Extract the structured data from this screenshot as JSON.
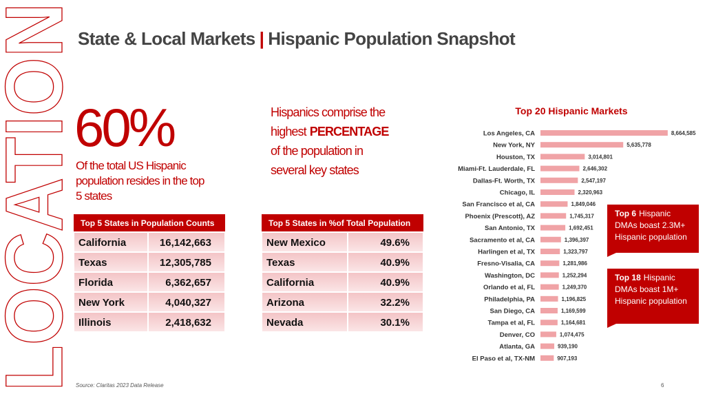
{
  "header": {
    "title_left": "State & Local Markets",
    "separator": "|",
    "title_right": "Hispanic Population Snapshot"
  },
  "side_label": "LOCATION",
  "headline": {
    "figure": "60%",
    "lines": [
      "Of the total US Hispanic",
      "population resides in the top",
      "5 states"
    ]
  },
  "statement": {
    "line1": "Hispanics comprise the",
    "line2_a": "highest",
    "line2_b": "PERCENTAGE",
    "line3": "of the population in",
    "line4": "several key states"
  },
  "tables": [
    {
      "title": "Top 5 States in Population Counts",
      "rows": [
        [
          "California",
          "16,142,663"
        ],
        [
          "Texas",
          "12,305,785"
        ],
        [
          "Florida",
          "6,362,657"
        ],
        [
          "New York",
          "4,040,327"
        ],
        [
          "Illinois",
          "2,418,632"
        ]
      ]
    },
    {
      "title": "Top 5 States in %of Total Population",
      "rows": [
        [
          "New Mexico",
          "49.6%"
        ],
        [
          "Texas",
          "40.9%"
        ],
        [
          "California",
          "40.9%"
        ],
        [
          "Arizona",
          "32.2%"
        ],
        [
          "Nevada",
          "30.1%"
        ]
      ]
    }
  ],
  "chart_data": {
    "type": "bar",
    "orientation": "horizontal",
    "title": "Top 20 Hispanic Markets",
    "color": "#f0a3a6",
    "xlim": [
      0,
      9000000
    ],
    "categories": [
      "Los Angeles, CA",
      "New York, NY",
      "Houston, TX",
      "Miami-Ft. Lauderdale, FL",
      "Dallas-Ft. Worth, TX",
      "Chicago, IL",
      "San Francisco et al, CA",
      "Phoenix (Prescott), AZ",
      "San Antonio, TX",
      "Sacramento et al, CA",
      "Harlingen et al, TX",
      "Fresno-Visalia, CA",
      "Washington, DC",
      "Orlando et al, FL",
      "Philadelphia, PA",
      "San Diego, CA",
      "Tampa et al, FL",
      "Denver, CO",
      "Atlanta, GA",
      "El Paso et al, TX-NM"
    ],
    "values": [
      8664585,
      5635778,
      3014801,
      2646302,
      2547197,
      2320963,
      1849046,
      1745317,
      1692451,
      1396397,
      1323797,
      1281986,
      1252294,
      1249370,
      1196825,
      1169599,
      1164681,
      1074475,
      939190,
      907193
    ],
    "value_labels": [
      "8,664,585",
      "5,635,778",
      "3,014,801",
      "2,646,302",
      "2,547,197",
      "2,320,963",
      "1,849,046",
      "1,745,317",
      "1,692,451",
      "1,396,397",
      "1,323,797",
      "1,281,986",
      "1,252,294",
      "1,249,370",
      "1,196,825",
      "1,169,599",
      "1,164,681",
      "1,074,475",
      "939,190",
      "907,193"
    ]
  },
  "callouts": [
    {
      "lead": "Top 6",
      "rest": "Hispanic",
      "line2": "DMAs boast 2.3M+",
      "line3": "Hispanic population"
    },
    {
      "lead": "Top 18",
      "rest": "Hispanic",
      "line2": "DMAs boast 1M+",
      "line3": "Hispanic population"
    }
  ],
  "footer": {
    "source": "Source: Claritas 2023 Data Release",
    "page": "6"
  }
}
